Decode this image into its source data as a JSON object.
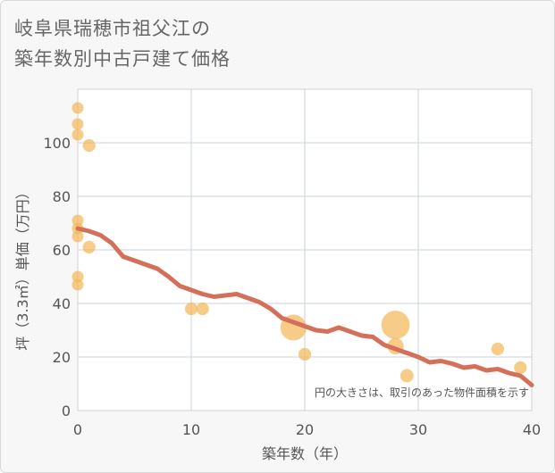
{
  "title_lines": [
    "岐阜県瑞穂市祖父江の",
    "築年数別中古戸建て価格"
  ],
  "chart_data": {
    "type": "scatter",
    "title": "岐阜県瑞穂市祖父江の築年数別中古戸建て価格",
    "xlabel": "築年数（年）",
    "ylabel": "坪（3.3㎡）単価（万円）",
    "xlim": [
      0,
      40
    ],
    "ylim": [
      0,
      120
    ],
    "xticks": [
      0,
      10,
      20,
      30,
      40
    ],
    "yticks": [
      0,
      20,
      40,
      60,
      80,
      100
    ],
    "grid": true,
    "annotation": "円の大きさは、取引のあった物件面積を示す",
    "colors": {
      "bubble": "#f2b95a",
      "trend": "#d4705a"
    },
    "bubbles": [
      {
        "x": 0,
        "y": 113,
        "size": 1
      },
      {
        "x": 0,
        "y": 107,
        "size": 1
      },
      {
        "x": 0,
        "y": 103,
        "size": 1
      },
      {
        "x": 1,
        "y": 99,
        "size": 1.2
      },
      {
        "x": 0,
        "y": 71,
        "size": 1
      },
      {
        "x": 0,
        "y": 68,
        "size": 1
      },
      {
        "x": 0,
        "y": 65,
        "size": 1
      },
      {
        "x": 1,
        "y": 61,
        "size": 1.2
      },
      {
        "x": 0,
        "y": 50,
        "size": 1
      },
      {
        "x": 0,
        "y": 47,
        "size": 1
      },
      {
        "x": 10,
        "y": 38,
        "size": 1.2
      },
      {
        "x": 11,
        "y": 38,
        "size": 1.2
      },
      {
        "x": 19,
        "y": 31,
        "size": 5
      },
      {
        "x": 20,
        "y": 21,
        "size": 1.2
      },
      {
        "x": 28,
        "y": 32,
        "size": 6
      },
      {
        "x": 28,
        "y": 24,
        "size": 2
      },
      {
        "x": 29,
        "y": 13,
        "size": 1.3
      },
      {
        "x": 37,
        "y": 23,
        "size": 1.2
      },
      {
        "x": 39,
        "y": 16,
        "size": 1.2
      }
    ],
    "trend": {
      "x": [
        0,
        1,
        2,
        3,
        4,
        5,
        6,
        7,
        8,
        9,
        10,
        11,
        12,
        13,
        14,
        15,
        16,
        17,
        18,
        19,
        20,
        21,
        22,
        23,
        24,
        25,
        26,
        27,
        28,
        29,
        30,
        31,
        32,
        33,
        34,
        35,
        36,
        37,
        38,
        39,
        40
      ],
      "y": [
        68,
        67,
        65.5,
        62.5,
        57.5,
        56,
        54.5,
        53,
        50,
        46.5,
        45,
        43.5,
        42.5,
        43,
        43.5,
        42,
        40.5,
        38,
        34.5,
        33,
        31.5,
        30,
        29.5,
        31,
        29.5,
        28,
        27.5,
        24.5,
        23,
        21.5,
        20,
        18,
        18.5,
        17.5,
        16,
        16.5,
        15,
        15.5,
        14,
        13,
        9.5
      ]
    }
  }
}
